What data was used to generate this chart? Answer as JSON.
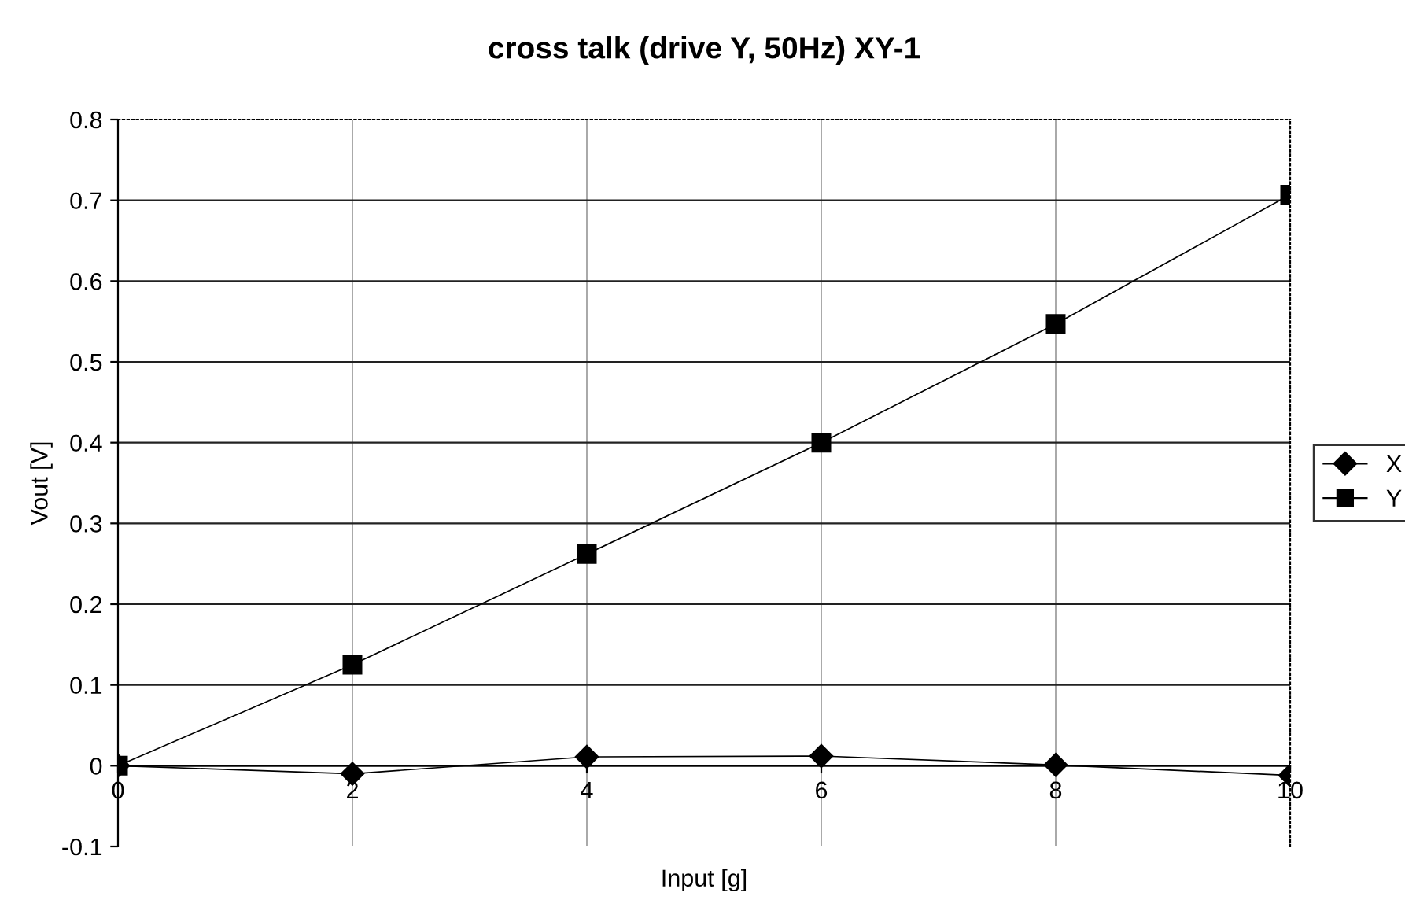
{
  "chart_data": {
    "type": "line",
    "title": "cross talk (drive Y, 50Hz) XY-1",
    "xlabel": "Input [g]",
    "ylabel": "Vout [V]",
    "x": [
      0,
      2,
      4,
      6,
      8,
      10
    ],
    "series": [
      {
        "name": "X",
        "color": "#000000",
        "marker": "diamond",
        "values": [
          0,
          -0.01,
          0.011,
          0.012,
          0.001,
          -0.012
        ]
      },
      {
        "name": "Y",
        "color": "#000000",
        "marker": "square",
        "values": [
          0,
          0.125,
          0.262,
          0.4,
          0.547,
          0.707
        ]
      }
    ],
    "xlim": [
      0,
      10
    ],
    "xticks": [
      0,
      2,
      4,
      6,
      8,
      10
    ],
    "ylim": [
      -0.1,
      0.8
    ],
    "yticks": [
      -0.1,
      0,
      0.1,
      0.2,
      0.3,
      0.4,
      0.5,
      0.6,
      0.7,
      0.8
    ],
    "grid": true,
    "legend": "right",
    "line_style": "solid"
  }
}
